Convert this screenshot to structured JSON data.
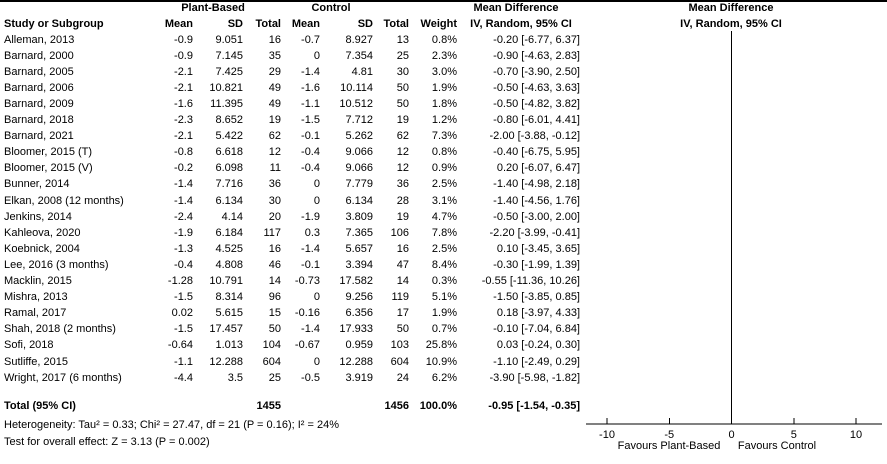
{
  "header": {
    "group1": "Plant-Based",
    "group2": "Control",
    "md": "Mean Difference",
    "ci_method": "IV, Random, 95% CI",
    "col_study": "Study or Subgroup",
    "col_mean": "Mean",
    "col_sd": "SD",
    "col_total": "Total",
    "col_weight": "Weight"
  },
  "chart_data": {
    "type": "forest",
    "effect_measure": "Mean Difference",
    "model": "IV, Random, 95% CI",
    "x_axis": {
      "min": -10,
      "max": 10,
      "ticks": [
        -10,
        -5,
        0,
        5,
        10
      ]
    },
    "favours_left": "Favours Plant-Based",
    "favours_right": "Favours Control",
    "marker_color": "#00bd00",
    "studies": [
      {
        "name": "Alleman, 2013",
        "mean1": "-0.9",
        "sd1": "9.051",
        "n1": "16",
        "mean2": "-0.7",
        "sd2": "8.927",
        "n2": "13",
        "weight": "0.8%",
        "ci_text": "-0.20 [-6.77, 6.37]",
        "est": -0.2,
        "lo": -6.77,
        "hi": 6.37,
        "w": 0.8
      },
      {
        "name": "Barnard, 2000",
        "mean1": "-0.9",
        "sd1": "7.145",
        "n1": "35",
        "mean2": "0",
        "sd2": "7.354",
        "n2": "25",
        "weight": "2.3%",
        "ci_text": "-0.90 [-4.63, 2.83]",
        "est": -0.9,
        "lo": -4.63,
        "hi": 2.83,
        "w": 2.3
      },
      {
        "name": "Barnard, 2005",
        "mean1": "-2.1",
        "sd1": "7.425",
        "n1": "29",
        "mean2": "-1.4",
        "sd2": "4.81",
        "n2": "30",
        "weight": "3.0%",
        "ci_text": "-0.70 [-3.90, 2.50]",
        "est": -0.7,
        "lo": -3.9,
        "hi": 2.5,
        "w": 3.0
      },
      {
        "name": "Barnard, 2006",
        "mean1": "-2.1",
        "sd1": "10.821",
        "n1": "49",
        "mean2": "-1.6",
        "sd2": "10.114",
        "n2": "50",
        "weight": "1.9%",
        "ci_text": "-0.50 [-4.63, 3.63]",
        "est": -0.5,
        "lo": -4.63,
        "hi": 3.63,
        "w": 1.9
      },
      {
        "name": "Barnard, 2009",
        "mean1": "-1.6",
        "sd1": "11.395",
        "n1": "49",
        "mean2": "-1.1",
        "sd2": "10.512",
        "n2": "50",
        "weight": "1.8%",
        "ci_text": "-0.50 [-4.82, 3.82]",
        "est": -0.5,
        "lo": -4.82,
        "hi": 3.82,
        "w": 1.8
      },
      {
        "name": "Barnard, 2018",
        "mean1": "-2.3",
        "sd1": "8.652",
        "n1": "19",
        "mean2": "-1.5",
        "sd2": "7.712",
        "n2": "19",
        "weight": "1.2%",
        "ci_text": "-0.80 [-6.01, 4.41]",
        "est": -0.8,
        "lo": -6.01,
        "hi": 4.41,
        "w": 1.2
      },
      {
        "name": "Barnard, 2021",
        "mean1": "-2.1",
        "sd1": "5.422",
        "n1": "62",
        "mean2": "-0.1",
        "sd2": "5.262",
        "n2": "62",
        "weight": "7.3%",
        "ci_text": "-2.00 [-3.88, -0.12]",
        "est": -2.0,
        "lo": -3.88,
        "hi": -0.12,
        "w": 7.3
      },
      {
        "name": "Bloomer, 2015 (T)",
        "mean1": "-0.8",
        "sd1": "6.618",
        "n1": "12",
        "mean2": "-0.4",
        "sd2": "9.066",
        "n2": "12",
        "weight": "0.8%",
        "ci_text": "-0.40 [-6.75, 5.95]",
        "est": -0.4,
        "lo": -6.75,
        "hi": 5.95,
        "w": 0.8
      },
      {
        "name": "Bloomer, 2015 (V)",
        "mean1": "-0.2",
        "sd1": "6.098",
        "n1": "11",
        "mean2": "-0.4",
        "sd2": "9.066",
        "n2": "12",
        "weight": "0.9%",
        "ci_text": "0.20 [-6.07, 6.47]",
        "est": 0.2,
        "lo": -6.07,
        "hi": 6.47,
        "w": 0.9
      },
      {
        "name": "Bunner, 2014",
        "mean1": "-1.4",
        "sd1": "7.716",
        "n1": "36",
        "mean2": "0",
        "sd2": "7.779",
        "n2": "36",
        "weight": "2.5%",
        "ci_text": "-1.40 [-4.98, 2.18]",
        "est": -1.4,
        "lo": -4.98,
        "hi": 2.18,
        "w": 2.5
      },
      {
        "name": "Elkan, 2008 (12 months)",
        "mean1": "-1.4",
        "sd1": "6.134",
        "n1": "30",
        "mean2": "0",
        "sd2": "6.134",
        "n2": "28",
        "weight": "3.1%",
        "ci_text": "-1.40 [-4.56, 1.76]",
        "est": -1.4,
        "lo": -4.56,
        "hi": 1.76,
        "w": 3.1
      },
      {
        "name": "Jenkins, 2014",
        "mean1": "-2.4",
        "sd1": "4.14",
        "n1": "20",
        "mean2": "-1.9",
        "sd2": "3.809",
        "n2": "19",
        "weight": "4.7%",
        "ci_text": "-0.50 [-3.00, 2.00]",
        "est": -0.5,
        "lo": -3.0,
        "hi": 2.0,
        "w": 4.7
      },
      {
        "name": "Kahleova, 2020",
        "mean1": "-1.9",
        "sd1": "6.184",
        "n1": "117",
        "mean2": "0.3",
        "sd2": "7.365",
        "n2": "106",
        "weight": "7.8%",
        "ci_text": "-2.20 [-3.99, -0.41]",
        "est": -2.2,
        "lo": -3.99,
        "hi": -0.41,
        "w": 7.8
      },
      {
        "name": "Koebnick, 2004",
        "mean1": "-1.3",
        "sd1": "4.525",
        "n1": "16",
        "mean2": "-1.4",
        "sd2": "5.657",
        "n2": "16",
        "weight": "2.5%",
        "ci_text": "0.10 [-3.45, 3.65]",
        "est": 0.1,
        "lo": -3.45,
        "hi": 3.65,
        "w": 2.5
      },
      {
        "name": "Lee, 2016 (3 months)",
        "mean1": "-0.4",
        "sd1": "4.808",
        "n1": "46",
        "mean2": "-0.1",
        "sd2": "3.394",
        "n2": "47",
        "weight": "8.4%",
        "ci_text": "-0.30 [-1.99, 1.39]",
        "est": -0.3,
        "lo": -1.99,
        "hi": 1.39,
        "w": 8.4
      },
      {
        "name": "Macklin, 2015",
        "mean1": "-1.28",
        "sd1": "10.791",
        "n1": "14",
        "mean2": "-0.73",
        "sd2": "17.582",
        "n2": "14",
        "weight": "0.3%",
        "ci_text": "-0.55 [-11.36, 10.26]",
        "est": -0.55,
        "lo": -11.36,
        "hi": 10.26,
        "w": 0.3
      },
      {
        "name": "Mishra, 2013",
        "mean1": "-1.5",
        "sd1": "8.314",
        "n1": "96",
        "mean2": "0",
        "sd2": "9.256",
        "n2": "119",
        "weight": "5.1%",
        "ci_text": "-1.50 [-3.85, 0.85]",
        "est": -1.5,
        "lo": -3.85,
        "hi": 0.85,
        "w": 5.1
      },
      {
        "name": "Ramal, 2017",
        "mean1": "0.02",
        "sd1": "5.615",
        "n1": "15",
        "mean2": "-0.16",
        "sd2": "6.356",
        "n2": "17",
        "weight": "1.9%",
        "ci_text": "0.18 [-3.97, 4.33]",
        "est": 0.18,
        "lo": -3.97,
        "hi": 4.33,
        "w": 1.9
      },
      {
        "name": "Shah, 2018 (2 months)",
        "mean1": "-1.5",
        "sd1": "17.457",
        "n1": "50",
        "mean2": "-1.4",
        "sd2": "17.933",
        "n2": "50",
        "weight": "0.7%",
        "ci_text": "-0.10 [-7.04, 6.84]",
        "est": -0.1,
        "lo": -7.04,
        "hi": 6.84,
        "w": 0.7
      },
      {
        "name": "Sofi, 2018",
        "mean1": "-0.64",
        "sd1": "1.013",
        "n1": "104",
        "mean2": "-0.67",
        "sd2": "0.959",
        "n2": "103",
        "weight": "25.8%",
        "ci_text": "0.03 [-0.24, 0.30]",
        "est": 0.03,
        "lo": -0.24,
        "hi": 0.3,
        "w": 25.8
      },
      {
        "name": "Sutliffe, 2015",
        "mean1": "-1.1",
        "sd1": "12.288",
        "n1": "604",
        "mean2": "0",
        "sd2": "12.288",
        "n2": "604",
        "weight": "10.9%",
        "ci_text": "-1.10 [-2.49, 0.29]",
        "est": -1.1,
        "lo": -2.49,
        "hi": 0.29,
        "w": 10.9
      },
      {
        "name": "Wright, 2017 (6 months)",
        "mean1": "-4.4",
        "sd1": "3.5",
        "n1": "25",
        "mean2": "-0.5",
        "sd2": "3.919",
        "n2": "24",
        "weight": "6.2%",
        "ci_text": "-3.90 [-5.98, -1.82]",
        "est": -3.9,
        "lo": -5.98,
        "hi": -1.82,
        "w": 6.2
      }
    ],
    "total": {
      "label": "Total (95% CI)",
      "n1": "1455",
      "n2": "1456",
      "weight": "100.0%",
      "ci_text": "-0.95 [-1.54, -0.35]",
      "est": -0.95,
      "lo": -1.54,
      "hi": -0.35
    },
    "heterogeneity": "Heterogeneity: Tau² = 0.33; Chi² = 27.47, df = 21 (P = 0.16); I² = 24%",
    "overall_effect": "Test for overall effect: Z = 3.13 (P = 0.002)"
  }
}
